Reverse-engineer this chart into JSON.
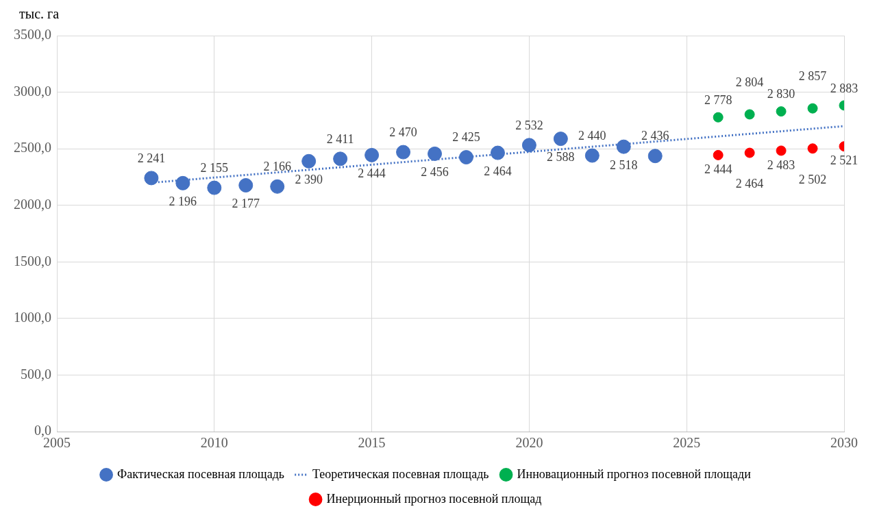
{
  "chart_data": {
    "type": "scatter",
    "ylabel": "тыс. га",
    "xlim": [
      2005,
      2030
    ],
    "xticks": [
      2005,
      2010,
      2015,
      2020,
      2025,
      2030
    ],
    "ylim": [
      0,
      3500
    ],
    "yticks": [
      {
        "value": 0,
        "label": "0,0"
      },
      {
        "value": 500,
        "label": "500,0"
      },
      {
        "value": 1000,
        "label": "1000,0"
      },
      {
        "value": 1500,
        "label": "1500,0"
      },
      {
        "value": 2000,
        "label": "2000,0"
      },
      {
        "value": 2500,
        "label": "2500,0"
      },
      {
        "value": 3000,
        "label": "3000,0"
      },
      {
        "value": 3500,
        "label": "3500,0"
      }
    ],
    "grid": true,
    "legend": "bottom",
    "marker": "circle",
    "series": [
      {
        "name": "Фактическая посевная площадь",
        "type": "scatter",
        "color": "#4472c4",
        "x": [
          2008,
          2009,
          2010,
          2011,
          2012,
          2013,
          2014,
          2015,
          2016,
          2017,
          2018,
          2019,
          2020,
          2021,
          2022,
          2023,
          2024
        ],
        "values": [
          2241,
          2196,
          2155,
          2177,
          2166,
          2390,
          2411,
          2444,
          2470,
          2456,
          2425,
          2464,
          2532,
          2588,
          2440,
          2518,
          2436
        ],
        "value_labels": [
          "2 241",
          "2 196",
          "2 155",
          "2 177",
          "2 166",
          "2 390",
          "2 411",
          "2 444",
          "2 470",
          "2 456",
          "2 425",
          "2 464",
          "2 532",
          "2 588",
          "2 440",
          "2 518",
          "2 436"
        ]
      },
      {
        "name": "Теоретическая посевная площадь",
        "type": "line",
        "line_style": "dotted",
        "marker": "none",
        "color": "#4472c4",
        "x": [
          2008,
          2030
        ],
        "values": [
          2200,
          2700
        ]
      },
      {
        "name": "Инновационный прогноз посевной площади",
        "type": "scatter",
        "color": "#00b050",
        "x": [
          2026,
          2027,
          2028,
          2029,
          2030
        ],
        "values": [
          2778,
          2804,
          2830,
          2857,
          2883
        ],
        "value_labels": [
          "2 778",
          "2 804",
          "2 830",
          "2 857",
          "2 883"
        ]
      },
      {
        "name": "Инерционный прогноз посевной площад",
        "type": "scatter",
        "color": "#ff0000",
        "x": [
          2026,
          2027,
          2028,
          2029,
          2030
        ],
        "values": [
          2444,
          2464,
          2483,
          2502,
          2521
        ],
        "value_labels": [
          "2 444",
          "2 464",
          "2 483",
          "2 502",
          "2 521"
        ]
      }
    ]
  }
}
